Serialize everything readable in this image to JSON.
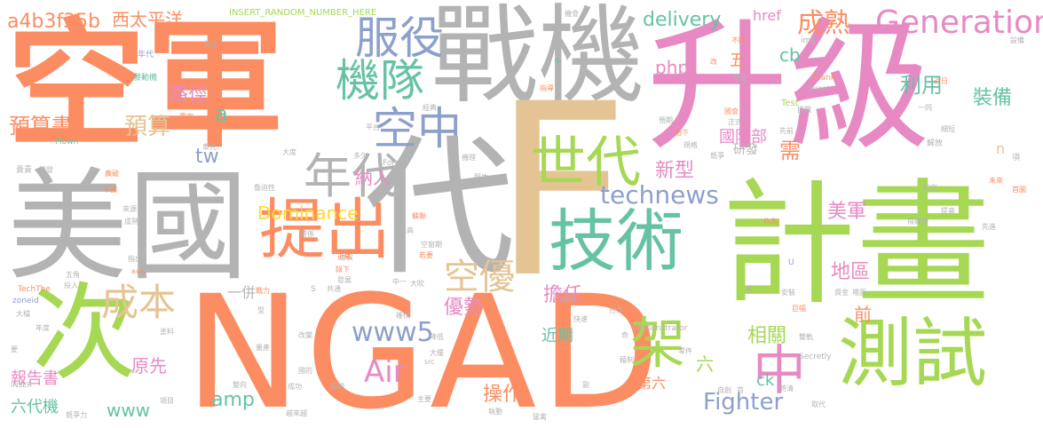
{
  "palette": {
    "orange": "#fc8d62",
    "gray": "#b3b3b3",
    "pink": "#e78ac3",
    "green": "#a6d854",
    "teal": "#66c2a5",
    "blue": "#8da0cb",
    "tan": "#e5c494",
    "yellow": "#ffd92f"
  },
  "words": [
    {
      "id": "w-kong-jun",
      "text": "空軍"
    },
    {
      "id": "w-zhan-ji",
      "text": "戰機"
    },
    {
      "id": "w-sheng-ji",
      "text": "升級"
    },
    {
      "id": "w-mei-guo",
      "text": "美國"
    },
    {
      "id": "w-ji-hua",
      "text": "計畫"
    },
    {
      "id": "w-ngad",
      "text": "NGAD"
    },
    {
      "id": "w-f",
      "text": "F"
    },
    {
      "id": "w-dai",
      "text": "代"
    },
    {
      "id": "w-ci",
      "text": "次"
    },
    {
      "id": "w-ji-shu",
      "text": "技術"
    },
    {
      "id": "w-ce-shi",
      "text": "測試"
    },
    {
      "id": "w-ti-chu",
      "text": "提出"
    },
    {
      "id": "w-shi-dai",
      "text": "世代"
    },
    {
      "id": "w-ji-dui",
      "text": "機隊"
    },
    {
      "id": "w-fu-yi",
      "text": "服役"
    },
    {
      "id": "w-kong-zhong",
      "text": "空中"
    },
    {
      "id": "w-zhong",
      "text": "中"
    },
    {
      "id": "w-jia",
      "text": "架"
    },
    {
      "id": "w-nian-dai",
      "text": "年代"
    },
    {
      "id": "w-generation",
      "text": "Generation"
    },
    {
      "id": "w-cheng-shu",
      "text": "成熟"
    },
    {
      "id": "w-cheng-ben",
      "text": "成本"
    },
    {
      "id": "w-kong-you",
      "text": "空優"
    },
    {
      "id": "w-air",
      "text": "Air"
    },
    {
      "id": "w-fighter",
      "text": "Fighter"
    },
    {
      "id": "w-dominance",
      "text": "Dominance"
    },
    {
      "id": "w-technews",
      "text": "technews"
    },
    {
      "id": "w-www5",
      "text": "www5"
    },
    {
      "id": "w-delivery",
      "text": "delivery"
    },
    {
      "id": "w-xi-tai-ping-yang",
      "text": "西太平洋"
    },
    {
      "id": "w-a4b3f35b",
      "text": "a4b3f35b"
    },
    {
      "id": "w-insert",
      "text": "INSERT_RANDOM_NUMBER_HERE"
    },
    {
      "id": "w-yu-suan-shu",
      "text": "預算書"
    },
    {
      "id": "w-yu-suan",
      "text": "預算"
    },
    {
      "id": "w-lu-jing",
      "text": "路徑"
    },
    {
      "id": "w-li-yong",
      "text": "利用"
    },
    {
      "id": "w-zhuang-bei",
      "text": "裝備"
    },
    {
      "id": "w-guo-fang-bu",
      "text": "國防部"
    },
    {
      "id": "w-xin-xing",
      "text": "新型"
    },
    {
      "id": "w-mei-jun",
      "text": "美軍"
    },
    {
      "id": "w-di-qu",
      "text": "地區"
    },
    {
      "id": "w-xiang-guan",
      "text": "相關"
    },
    {
      "id": "w-you-shi",
      "text": "優勢"
    },
    {
      "id": "w-dan-ren",
      "text": "擔任"
    },
    {
      "id": "w-cao-zuo",
      "text": "操作"
    },
    {
      "id": "w-na-ru",
      "text": "納入"
    },
    {
      "id": "w-yuan-xian",
      "text": "原先"
    },
    {
      "id": "w-bao-gao-shu",
      "text": "報告書"
    },
    {
      "id": "w-liu-dai-ji",
      "text": "六代機"
    },
    {
      "id": "w-www",
      "text": "www"
    },
    {
      "id": "w-amp",
      "text": "amp"
    },
    {
      "id": "w-php",
      "text": "php"
    },
    {
      "id": "w-cb",
      "text": "cb"
    },
    {
      "id": "w-href",
      "text": "href"
    },
    {
      "id": "w-tw",
      "text": "tw"
    },
    {
      "id": "w-a",
      "text": "a"
    },
    {
      "id": "w-xu",
      "text": "需"
    },
    {
      "id": "w-yan-fa",
      "text": "研發"
    },
    {
      "id": "w-wu",
      "text": "五"
    },
    {
      "id": "w-qian",
      "text": "前"
    },
    {
      "id": "w-jin-qi",
      "text": "近期"
    },
    {
      "id": "w-di-liu",
      "text": "第六"
    },
    {
      "id": "w-liu",
      "text": "六"
    },
    {
      "id": "w-ck",
      "text": "ck"
    },
    {
      "id": "w-n",
      "text": "n"
    },
    {
      "id": "w-yi-bing",
      "text": "一併"
    },
    {
      "id": "w-img",
      "text": "img"
    },
    {
      "id": "w-blank",
      "text": "_blank"
    },
    {
      "id": "w-target",
      "text": "target"
    },
    {
      "id": "w-test",
      "text": "Test"
    },
    {
      "id": "w-flown",
      "text": "Flown"
    },
    {
      "id": "w-force",
      "text": "Force"
    },
    {
      "id": "w-techthe",
      "text": "TechThe"
    },
    {
      "id": "w-zoneid",
      "text": "zoneid"
    },
    {
      "id": "w-avw",
      "text": "avw"
    },
    {
      "id": "w-demonstrator",
      "text": "Demonstrator"
    },
    {
      "id": "w-secretly",
      "text": "Secretly"
    },
    {
      "id": "w-inser",
      "text": "INSER"
    },
    {
      "id": "w-src",
      "text": "src"
    },
    {
      "id": "w-s",
      "text": "S"
    },
    {
      "id": "w-u",
      "text": "U"
    },
    {
      "id": "w-nian-dai-s",
      "text": "年代"
    },
    {
      "id": "w-fa-dong-ji",
      "text": "發動機"
    },
    {
      "id": "w-zhuan-jia",
      "text": "專家"
    },
    {
      "id": "w-ji-shang",
      "text": "協上"
    },
    {
      "id": "w-kuan",
      "text": "款"
    },
    {
      "id": "w-ling",
      "text": "令"
    },
    {
      "id": "w-ji-hui",
      "text": "機會"
    },
    {
      "id": "w-bu-shu",
      "text": "不斷"
    },
    {
      "id": "w-gai",
      "text": "改"
    },
    {
      "id": "w-fang-sheng",
      "text": "放生"
    },
    {
      "id": "w-yi-tong",
      "text": "一同"
    },
    {
      "id": "w-jin-ri",
      "text": "近日"
    },
    {
      "id": "w-she-bei",
      "text": "設備"
    },
    {
      "id": "w-jing-dian",
      "text": "經典"
    },
    {
      "id": "w-zhi-dao",
      "text": "指導"
    },
    {
      "id": "w-ping-tai",
      "text": "平台"
    },
    {
      "id": "w-zheng-shi",
      "text": "正式"
    },
    {
      "id": "w-guo-hui",
      "text": "國會"
    },
    {
      "id": "w-yu-qi",
      "text": "預期"
    },
    {
      "id": "w-pai-xia",
      "text": "拍下"
    },
    {
      "id": "w-xian-qian",
      "text": "先前"
    },
    {
      "id": "w-tiao-zhan",
      "text": "挑戰"
    },
    {
      "id": "w-gui-ge",
      "text": "規格"
    },
    {
      "id": "w-jing-zheng",
      "text": "競爭"
    },
    {
      "id": "w-jie-fang",
      "text": "解放"
    },
    {
      "id": "w-xi-jie",
      "text": "細短"
    },
    {
      "id": "w-xiang",
      "text": "項"
    },
    {
      "id": "w-wei-lai",
      "text": "未來"
    },
    {
      "id": "w-shou-tu",
      "text": "首圖"
    },
    {
      "id": "w-hang-kong",
      "text": "航空"
    },
    {
      "id": "w-ti-gao",
      "text": "提高"
    },
    {
      "id": "w-xian-jin",
      "text": "先進"
    },
    {
      "id": "w-cai-gou",
      "text": "採購費"
    },
    {
      "id": "w-zuo-wei",
      "text": "作為"
    },
    {
      "id": "w-che-xian",
      "text": "車先"
    },
    {
      "id": "w-lai-yuan",
      "text": "來源"
    },
    {
      "id": "w-cheng-fang",
      "text": "成熟度"
    },
    {
      "id": "w-gui-ze",
      "text": "貴責"
    },
    {
      "id": "w-kai-fa",
      "text": "開發"
    },
    {
      "id": "w-fang-shi",
      "text": "廣破"
    },
    {
      "id": "w-zhong-guo",
      "text": "中國"
    },
    {
      "id": "w-lu-ji",
      "text": "魯迫性"
    },
    {
      "id": "w-da-du",
      "text": "大度"
    },
    {
      "id": "w-duo-jiu",
      "text": "多久"
    },
    {
      "id": "w-fei-zhu",
      "text": "蘇聯"
    },
    {
      "id": "w-zui-gao",
      "text": "最高"
    },
    {
      "id": "w-kong-zhong-qi",
      "text": "空窗期"
    },
    {
      "id": "w-ruo-yao",
      "text": "若要"
    },
    {
      "id": "w-ji-li",
      "text": "機理"
    },
    {
      "id": "w-zhao-pian",
      "text": "照片"
    },
    {
      "id": "w-jiang-xi",
      "text": "將係"
    },
    {
      "id": "w-xian-shi",
      "text": "現役"
    },
    {
      "id": "w-lu-xia",
      "text": "錄下"
    },
    {
      "id": "w-zhong-hua",
      "text": "中一"
    },
    {
      "id": "w-fa-yuan",
      "text": "發展"
    },
    {
      "id": "w-wu-jiao",
      "text": "五角"
    },
    {
      "id": "w-tou-ru",
      "text": "投入"
    },
    {
      "id": "w-zhi-chu",
      "text": "指出"
    },
    {
      "id": "w-jin-nian",
      "text": "近年"
    },
    {
      "id": "w-da-qi",
      "text": "大吹"
    },
    {
      "id": "w-gong-tong",
      "text": "共通"
    },
    {
      "id": "w-zhan-li",
      "text": "戰力"
    },
    {
      "id": "w-fei-xing",
      "text": "飛行"
    },
    {
      "id": "w-an-quan",
      "text": "安裝"
    },
    {
      "id": "w-du",
      "text": "度"
    },
    {
      "id": "w-zi-jin",
      "text": "資金"
    },
    {
      "id": "w-chang-mian",
      "text": "場面"
    },
    {
      "id": "w-ju-fu",
      "text": "巨幅"
    },
    {
      "id": "w-shuang-gui",
      "text": "雙軌"
    },
    {
      "id": "w-da-qiang",
      "text": "大檔"
    },
    {
      "id": "w-nian-du",
      "text": "年度"
    },
    {
      "id": "w-tu-liao",
      "text": "塗料"
    },
    {
      "id": "w-xing",
      "text": "型"
    },
    {
      "id": "w-liang-chan",
      "text": "量產"
    },
    {
      "id": "w-que-bao",
      "text": "確保"
    },
    {
      "id": "w-jiang-di",
      "text": "降低"
    },
    {
      "id": "w-he-zuo",
      "text": "合作"
    },
    {
      "id": "w-kuai-su",
      "text": "快速"
    },
    {
      "id": "w-gai-bian",
      "text": "改變"
    },
    {
      "id": "w-da-xing",
      "text": "大擺"
    },
    {
      "id": "w-ling-jian",
      "text": "零件"
    },
    {
      "id": "w-cong-ci",
      "text": "藉制"
    },
    {
      "id": "w-ci-wu",
      "text": "奇"
    },
    {
      "id": "w-she",
      "text": "副"
    },
    {
      "id": "w-zi-xin",
      "text": "自創"
    },
    {
      "id": "w-shou",
      "text": "首"
    },
    {
      "id": "w-jiang-qing",
      "text": "將清"
    },
    {
      "id": "w-qu-dai",
      "text": "取代"
    },
    {
      "id": "w-jing-zheng-li",
      "text": "競爭力"
    },
    {
      "id": "w-yue-lai-yue",
      "text": "越來越"
    },
    {
      "id": "w-zhi-dong",
      "text": "執動"
    },
    {
      "id": "w-meng-qin",
      "text": "猛禽"
    },
    {
      "id": "w-xiang-mu",
      "text": "項目"
    },
    {
      "id": "w-shuang-xiang",
      "text": "雙向"
    },
    {
      "id": "w-chang-qi",
      "text": "長期"
    },
    {
      "id": "w-cheng-gong",
      "text": "成功"
    },
    {
      "id": "w-zhu-yao",
      "text": "主要"
    },
    {
      "id": "w-zai",
      "text": "要"
    },
    {
      "id": "w-mi-ma",
      "text": "國的"
    }
  ]
}
